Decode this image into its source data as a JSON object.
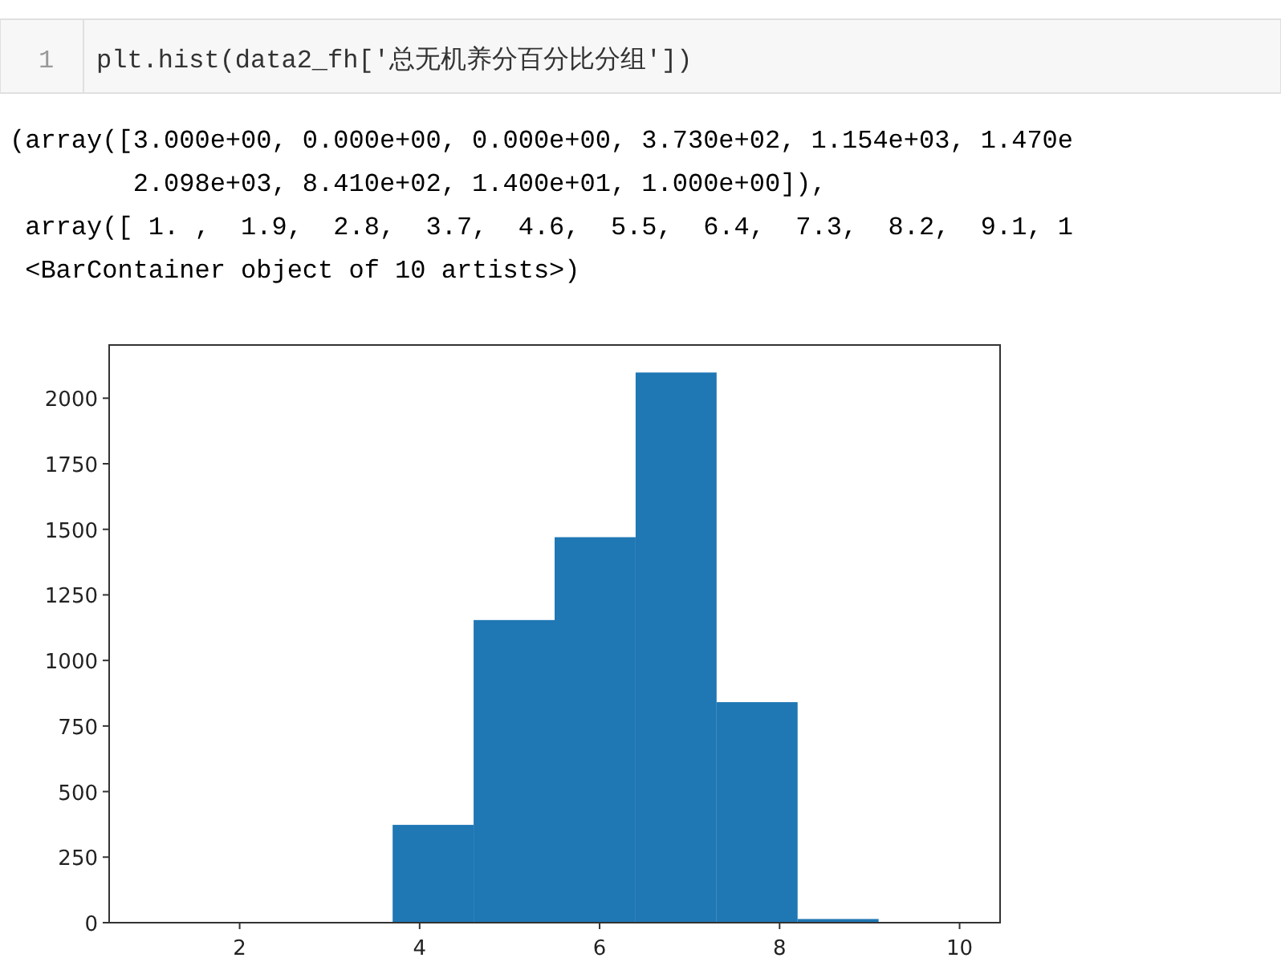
{
  "chart_data": {
    "type": "histogram",
    "bins": [
      1,
      1.9,
      2.8,
      3.7,
      4.6,
      5.5,
      6.4,
      7.3,
      8.2,
      9.1,
      10
    ],
    "values": [
      3,
      0,
      0,
      373,
      1154,
      1470,
      2098,
      841,
      14,
      1
    ],
    "color": "#1f77b4",
    "xlim": [
      0.55,
      10.45
    ],
    "ylim": [
      0,
      2202.9
    ],
    "xticks": [
      2,
      4,
      6,
      8,
      10
    ],
    "yticks": [
      0,
      250,
      500,
      750,
      1000,
      1250,
      1500,
      1750,
      2000
    ],
    "grid": false,
    "annotations": [
      "1",
      "plt.hist(data2_fh['总无机养分百分比分组'])",
      "(array([3.000e+00, 0.000e+00, 0.000e+00, 3.730e+02, 1.154e+03, 1.470e",
      "        2.098e+03, 8.410e+02, 1.400e+01, 1.000e+00]),",
      " array([ 1. ,  1.9,  2.8,  3.7,  4.6,  5.5,  6.4,  7.3,  8.2,  9.1, 1",
      " <BarContainer object of 10 artists>)"
    ]
  }
}
